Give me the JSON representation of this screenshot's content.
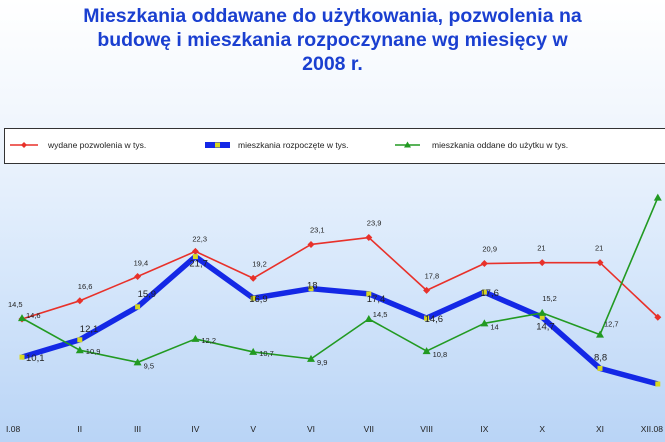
{
  "title": "Mieszkania oddawane do użytkowania, pozwolenia na budowę i mieszkania rozpoczynane wg miesięcy w 2008 r.",
  "title_lines": [
    "Mieszkania oddawane do użytkowania, pozwolenia na",
    "budowę i mieszkania rozpoczynane wg miesięcy w",
    "2008 r."
  ],
  "colors": {
    "title": "#1a3fd0",
    "permits": "#e8312a",
    "started": "#1428e6",
    "completed": "#229a22",
    "marker_started": "#d8d820"
  },
  "chart_data": {
    "type": "line",
    "title": "Mieszkania oddawane do użytkowania, pozwolenia na budowę i mieszkania rozpoczynane wg miesięcy w 2008 r.",
    "categories": [
      "I.08",
      "II",
      "III",
      "IV",
      "V",
      "VI",
      "VII",
      "VIII",
      "IX",
      "X",
      "XI",
      "XII.08"
    ],
    "category_labels_visible": [
      "I.08",
      "II",
      "III",
      "IV",
      "V",
      "VI",
      "VII",
      "VIII",
      "IX",
      "X",
      "XI",
      "XII.08"
    ],
    "series": [
      {
        "name": "wydane pozwolenia w tys.",
        "color": "#e8312a",
        "marker": "diamond",
        "values": [
          14.5,
          16.6,
          19.4,
          22.3,
          19.2,
          23.1,
          23.9,
          17.8,
          20.9,
          21.0,
          21.0,
          14.7
        ],
        "labels": [
          "14,5",
          "16,6",
          "19,4",
          "22,3",
          "19,2",
          "23,1",
          "23,9",
          "17,8",
          "20,9",
          "21",
          "21",
          ""
        ]
      },
      {
        "name": "mieszkania rozpoczęte w tys.",
        "color": "#1428e6",
        "marker": "square",
        "values": [
          10.1,
          12.1,
          15.9,
          21.7,
          16.9,
          18.0,
          17.4,
          14.6,
          17.6,
          14.7,
          8.8,
          7.0
        ],
        "labels": [
          "10,1",
          "12,1",
          "15,9",
          "21,7",
          "16,9",
          "18",
          "17,4",
          "14,6",
          "17,6",
          "14,7",
          "8,8",
          ""
        ]
      },
      {
        "name": "mieszkania oddane do użytku w tys.",
        "color": "#229a22",
        "marker": "triangle",
        "values": [
          14.6,
          10.9,
          9.5,
          12.2,
          10.7,
          9.9,
          14.5,
          10.8,
          14.0,
          15.2,
          12.7,
          28.5
        ],
        "labels": [
          "14,6",
          "10,9",
          "9,5",
          "12,2",
          "10,7",
          "9,9",
          "14,5",
          "10,8",
          "14",
          "15,2",
          "12,7",
          ""
        ]
      }
    ],
    "ylim": [
      4,
      34
    ],
    "grid": false,
    "legend_position": "top"
  }
}
